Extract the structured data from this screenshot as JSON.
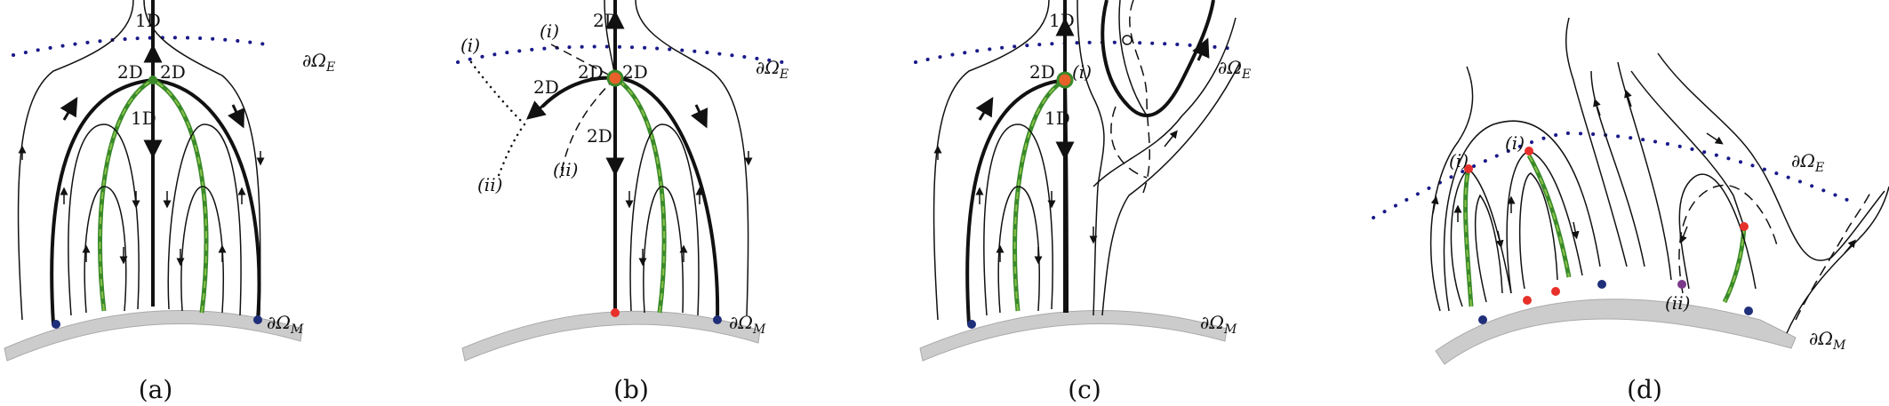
{
  "figure": {
    "panels": [
      {
        "caption": "(a)",
        "labels": {
          "top_1d": "1D",
          "left_2d": "2D",
          "right_2d": "2D",
          "mid_1d": "1D",
          "boundary_e": "∂Ω",
          "boundary_e_sub": "E",
          "boundary_m": "∂Ω",
          "boundary_m_sub": "M"
        }
      },
      {
        "caption": "(b)",
        "labels": {
          "top_2d": "2D",
          "i_left": "(i)",
          "i_right": "(i)",
          "upper_2d_left": "2D",
          "upper_2d_right": "2D",
          "left_2d": "2D",
          "mid_2d": "2D",
          "ii_right": "(ii)",
          "ii_left": "(ii)",
          "boundary_e": "∂Ω",
          "boundary_e_sub": "E",
          "boundary_m": "∂Ω",
          "boundary_m_sub": "M"
        }
      },
      {
        "caption": "(c)",
        "labels": {
          "top_1d": "1D",
          "left_2d": "2D",
          "i_label": "(i)",
          "mid_1d": "1D",
          "boundary_e": "∂Ω",
          "boundary_e_sub": "E",
          "boundary_m": "∂Ω",
          "boundary_m_sub": "M"
        }
      },
      {
        "caption": "(d)",
        "labels": {
          "i_left": "(i)",
          "i_right": "(i)",
          "ii_label": "(ii)",
          "boundary_e": "∂Ω",
          "boundary_e_sub": "E",
          "boundary_m": "∂Ω",
          "boundary_m_sub": "M"
        }
      }
    ],
    "colors": {
      "stroke": "#111111",
      "green": "#3a8a2a",
      "green_dash": "#8ac24a",
      "dotted_blue": "#1a1a8a",
      "surface": "#cccccc",
      "dot_blue": "#1f2f7a",
      "dot_red": "#e8302a",
      "dot_purple": "#7a3a8a",
      "dot_orange": "#e8602a"
    }
  }
}
